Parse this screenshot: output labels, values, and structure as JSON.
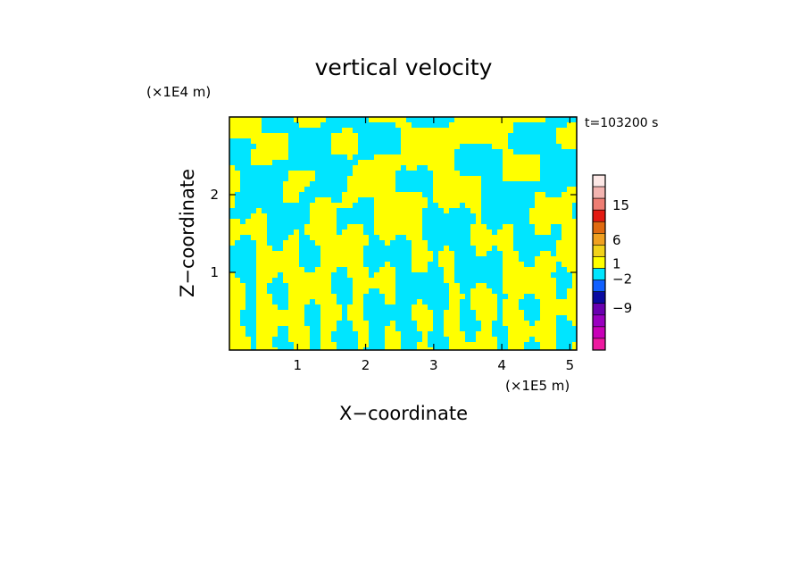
{
  "chart_data": {
    "type": "heatmap",
    "title": "vertical velocity",
    "xlabel": "X−coordinate",
    "ylabel": "Z−coordinate",
    "x_unit": "(×1E5 m)",
    "y_unit": "(×1E4 m)",
    "time_label": "t=103200 s",
    "xlim": [
      0,
      5.1
    ],
    "ylim": [
      0,
      3.0
    ],
    "x_ticks": [
      1,
      2,
      3,
      4,
      5
    ],
    "y_ticks": [
      1,
      2
    ],
    "colorbar": {
      "tick_labels": [
        "15",
        "6",
        "1",
        "−2",
        "−9"
      ],
      "levels_top_to_bottom": [
        {
          "color": "#fde8e6"
        },
        {
          "color": "#f3b4b0"
        },
        {
          "color": "#ee7d73"
        },
        {
          "color": "#e31a12"
        },
        {
          "color": "#e06a10"
        },
        {
          "color": "#f0a020"
        },
        {
          "color": "#f2d21a"
        },
        {
          "color": "#ffff00"
        },
        {
          "color": "#00e5ff"
        },
        {
          "color": "#1060ff"
        },
        {
          "color": "#0a0aa0"
        },
        {
          "color": "#6a00b0"
        },
        {
          "color": "#9a00c0"
        },
        {
          "color": "#c800b8"
        },
        {
          "color": "#ee1aa0"
        }
      ]
    },
    "field_colors": {
      "positive": "#ffff00",
      "negative": "#00e5ff"
    }
  }
}
